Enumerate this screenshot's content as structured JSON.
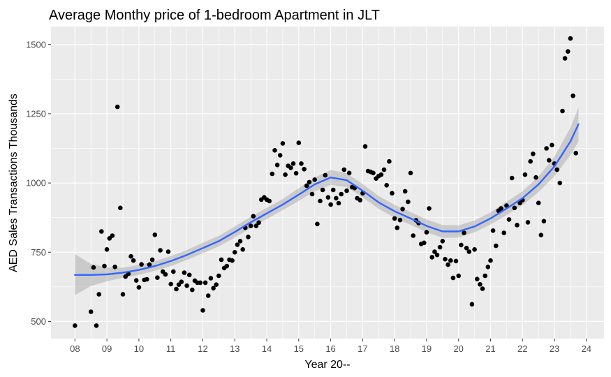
{
  "chart_data": {
    "type": "scatter",
    "title": "Average Monthy price of 1-bedroom Apartment in JLT",
    "xlabel": "Year 20--",
    "ylabel": "AED Sales Transactions Thousands",
    "xlim": [
      7.25,
      24.55
    ],
    "ylim": [
      438,
      1565
    ],
    "x_ticks": [
      8,
      9,
      10,
      11,
      12,
      13,
      14,
      15,
      16,
      17,
      18,
      19,
      20,
      21,
      22,
      23,
      24
    ],
    "x_tick_labels": [
      "08",
      "09",
      "10",
      "11",
      "12",
      "13",
      "14",
      "15",
      "16",
      "17",
      "18",
      "19",
      "20",
      "21",
      "22",
      "23",
      "24"
    ],
    "y_ticks": [
      500,
      750,
      1000,
      1250,
      1500
    ],
    "y_tick_labels": [
      "500",
      "750",
      "1000",
      "1250",
      "1500"
    ],
    "grid": true,
    "background": "#EBEBEB",
    "gridline_color": "#FFFFFF",
    "point_color": "#000000",
    "smooth_color": "#3366FF",
    "ribbon_color": "#999999",
    "points": [
      [
        8.0,
        485
      ],
      [
        8.5,
        535
      ],
      [
        8.58,
        695
      ],
      [
        8.67,
        485
      ],
      [
        8.75,
        598
      ],
      [
        8.83,
        825
      ],
      [
        8.92,
        700
      ],
      [
        9.0,
        760
      ],
      [
        9.08,
        800
      ],
      [
        9.17,
        810
      ],
      [
        9.25,
        697
      ],
      [
        9.33,
        1275
      ],
      [
        9.42,
        910
      ],
      [
        9.5,
        598
      ],
      [
        9.58,
        662
      ],
      [
        9.67,
        672
      ],
      [
        9.75,
        735
      ],
      [
        9.83,
        720
      ],
      [
        9.92,
        648
      ],
      [
        10.0,
        623
      ],
      [
        10.08,
        706
      ],
      [
        10.17,
        650
      ],
      [
        10.25,
        652
      ],
      [
        10.33,
        705
      ],
      [
        10.42,
        723
      ],
      [
        10.5,
        813
      ],
      [
        10.58,
        658
      ],
      [
        10.67,
        757
      ],
      [
        10.75,
        680
      ],
      [
        10.83,
        670
      ],
      [
        10.92,
        752
      ],
      [
        11.0,
        635
      ],
      [
        11.08,
        680
      ],
      [
        11.17,
        617
      ],
      [
        11.25,
        633
      ],
      [
        11.33,
        643
      ],
      [
        11.42,
        676
      ],
      [
        11.5,
        629
      ],
      [
        11.58,
        668
      ],
      [
        11.67,
        614
      ],
      [
        11.75,
        647
      ],
      [
        11.83,
        640
      ],
      [
        11.92,
        640
      ],
      [
        12.0,
        540
      ],
      [
        12.08,
        640
      ],
      [
        12.17,
        593
      ],
      [
        12.25,
        656
      ],
      [
        12.33,
        620
      ],
      [
        12.42,
        633
      ],
      [
        12.5,
        665
      ],
      [
        12.58,
        723
      ],
      [
        12.67,
        693
      ],
      [
        12.75,
        700
      ],
      [
        12.83,
        723
      ],
      [
        12.92,
        720
      ],
      [
        13.0,
        750
      ],
      [
        13.08,
        777
      ],
      [
        13.17,
        790
      ],
      [
        13.25,
        760
      ],
      [
        13.33,
        838
      ],
      [
        13.42,
        805
      ],
      [
        13.5,
        845
      ],
      [
        13.58,
        880
      ],
      [
        13.67,
        845
      ],
      [
        13.75,
        857
      ],
      [
        13.83,
        940
      ],
      [
        13.92,
        948
      ],
      [
        14.0,
        940
      ],
      [
        14.08,
        935
      ],
      [
        14.17,
        1033
      ],
      [
        14.25,
        1118
      ],
      [
        14.33,
        1065
      ],
      [
        14.42,
        1100
      ],
      [
        14.5,
        1143
      ],
      [
        14.58,
        1030
      ],
      [
        14.67,
        1062
      ],
      [
        14.75,
        1055
      ],
      [
        14.83,
        1070
      ],
      [
        14.92,
        1035
      ],
      [
        15.0,
        1145
      ],
      [
        15.08,
        1070
      ],
      [
        15.17,
        1050
      ],
      [
        15.25,
        990
      ],
      [
        15.33,
        1003
      ],
      [
        15.42,
        960
      ],
      [
        15.5,
        1012
      ],
      [
        15.58,
        852
      ],
      [
        15.67,
        935
      ],
      [
        15.75,
        975
      ],
      [
        15.83,
        1028
      ],
      [
        15.92,
        948
      ],
      [
        16.0,
        922
      ],
      [
        16.08,
        975
      ],
      [
        16.17,
        945
      ],
      [
        16.25,
        927
      ],
      [
        16.33,
        960
      ],
      [
        16.42,
        1048
      ],
      [
        16.5,
        972
      ],
      [
        16.58,
        1036
      ],
      [
        16.67,
        985
      ],
      [
        16.75,
        982
      ],
      [
        16.83,
        945
      ],
      [
        16.92,
        938
      ],
      [
        17.0,
        963
      ],
      [
        17.08,
        1132
      ],
      [
        17.17,
        1043
      ],
      [
        17.25,
        1040
      ],
      [
        17.33,
        1036
      ],
      [
        17.42,
        1016
      ],
      [
        17.5,
        1025
      ],
      [
        17.58,
        1030
      ],
      [
        17.67,
        1048
      ],
      [
        17.75,
        992
      ],
      [
        17.83,
        1078
      ],
      [
        17.92,
        963
      ],
      [
        18.0,
        872
      ],
      [
        18.08,
        838
      ],
      [
        18.17,
        866
      ],
      [
        18.25,
        906
      ],
      [
        18.33,
        970
      ],
      [
        18.42,
        932
      ],
      [
        18.5,
        1036
      ],
      [
        18.58,
        810
      ],
      [
        18.67,
        865
      ],
      [
        18.75,
        855
      ],
      [
        18.83,
        780
      ],
      [
        18.92,
        784
      ],
      [
        19.0,
        822
      ],
      [
        19.08,
        908
      ],
      [
        19.17,
        732
      ],
      [
        19.25,
        752
      ],
      [
        19.33,
        740
      ],
      [
        19.42,
        768
      ],
      [
        19.5,
        790
      ],
      [
        19.58,
        725
      ],
      [
        19.67,
        705
      ],
      [
        19.75,
        720
      ],
      [
        19.83,
        657
      ],
      [
        19.92,
        718
      ],
      [
        20.0,
        665
      ],
      [
        20.08,
        776
      ],
      [
        20.17,
        820
      ],
      [
        20.25,
        765
      ],
      [
        20.33,
        752
      ],
      [
        20.42,
        562
      ],
      [
        20.5,
        760
      ],
      [
        20.58,
        653
      ],
      [
        20.67,
        634
      ],
      [
        20.75,
        618
      ],
      [
        20.83,
        665
      ],
      [
        20.92,
        697
      ],
      [
        21.0,
        720
      ],
      [
        21.08,
        828
      ],
      [
        21.17,
        773
      ],
      [
        21.25,
        900
      ],
      [
        21.33,
        908
      ],
      [
        21.42,
        820
      ],
      [
        21.5,
        918
      ],
      [
        21.58,
        868
      ],
      [
        21.67,
        1018
      ],
      [
        21.75,
        910
      ],
      [
        21.83,
        848
      ],
      [
        21.92,
        928
      ],
      [
        22.0,
        938
      ],
      [
        22.08,
        1030
      ],
      [
        22.17,
        858
      ],
      [
        22.25,
        1078
      ],
      [
        22.33,
        1105
      ],
      [
        22.42,
        1020
      ],
      [
        22.5,
        928
      ],
      [
        22.58,
        812
      ],
      [
        22.67,
        862
      ],
      [
        22.75,
        1125
      ],
      [
        22.83,
        1082
      ],
      [
        22.92,
        1137
      ],
      [
        23.0,
        1070
      ],
      [
        23.08,
        1048
      ],
      [
        23.17,
        1000
      ],
      [
        23.25,
        1260
      ],
      [
        23.33,
        1450
      ],
      [
        23.42,
        1475
      ],
      [
        23.5,
        1522
      ],
      [
        23.58,
        1315
      ],
      [
        23.67,
        1108
      ]
    ],
    "smooth": {
      "x": [
        8.0,
        8.5,
        9.0,
        9.5,
        10.0,
        10.5,
        11.0,
        11.5,
        12.0,
        12.5,
        13.0,
        13.5,
        14.0,
        14.5,
        15.0,
        15.5,
        16.0,
        16.5,
        17.0,
        17.5,
        18.0,
        18.5,
        19.0,
        19.5,
        20.0,
        20.5,
        21.0,
        21.5,
        22.0,
        22.5,
        23.0,
        23.5,
        23.75
      ],
      "y": [
        668,
        668,
        670,
        676,
        686,
        700,
        718,
        740,
        765,
        790,
        823,
        858,
        890,
        922,
        958,
        995,
        1020,
        1010,
        972,
        930,
        898,
        872,
        845,
        825,
        825,
        843,
        872,
        908,
        945,
        995,
        1060,
        1150,
        1212
      ],
      "lower": [
        595,
        628,
        645,
        658,
        668,
        683,
        700,
        722,
        746,
        771,
        803,
        838,
        870,
        902,
        935,
        970,
        993,
        985,
        948,
        907,
        875,
        849,
        822,
        802,
        803,
        822,
        850,
        884,
        920,
        967,
        1025,
        1100,
        1150
      ],
      "upper": [
        743,
        708,
        695,
        694,
        704,
        717,
        736,
        758,
        784,
        809,
        843,
        878,
        910,
        942,
        981,
        1020,
        1047,
        1035,
        996,
        953,
        921,
        895,
        868,
        848,
        847,
        864,
        894,
        932,
        970,
        1023,
        1095,
        1200,
        1272
      ]
    }
  }
}
